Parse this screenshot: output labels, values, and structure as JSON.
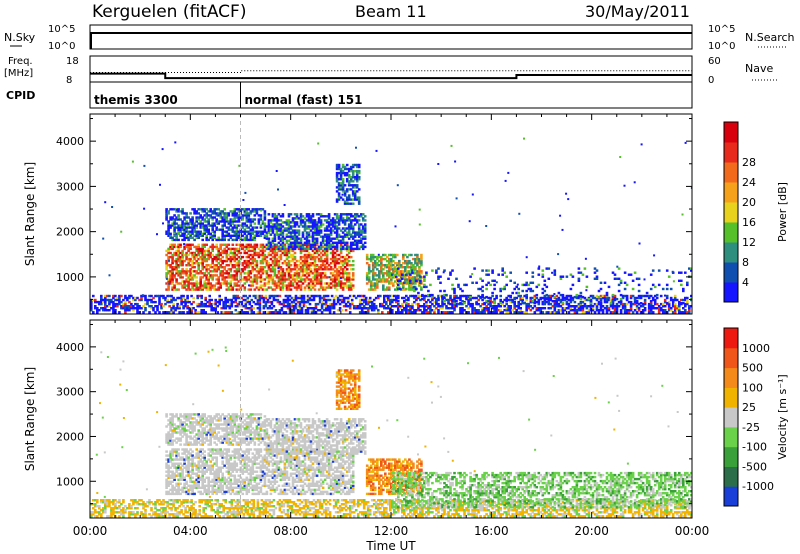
{
  "header": {
    "station": "Kerguelen (fitACF)",
    "beam": "Beam 11",
    "date": "30/May/2011"
  },
  "top_panels": {
    "nsky_label": "N.Sky",
    "nsearch_label": "N.Search",
    "n_ticks_left": [
      "10^5",
      "10^0"
    ],
    "n_ticks_right": [
      "10^5",
      "10^0"
    ],
    "freq_label_line1": "Freq.",
    "freq_label_line2": "[MHz]",
    "freq_ticks": [
      "18",
      "8"
    ],
    "nave_label": "Nave",
    "nave_ticks": [
      "60",
      "0"
    ],
    "cpid_label": "CPID",
    "cpid_modes": [
      {
        "name": "themis 3300",
        "start_hour": 0
      },
      {
        "name": "normal (fast) 151",
        "start_hour": 6
      }
    ],
    "freq_mhz": [
      {
        "start": 0,
        "end": 3.0,
        "value": 11.2
      },
      {
        "start": 3.0,
        "end": 17.0,
        "value": 9.5
      },
      {
        "start": 17.0,
        "end": 24.0,
        "value": 10.7
      }
    ],
    "nave": [
      {
        "start": 0,
        "end": 6.0,
        "value": 22
      },
      {
        "start": 6.0,
        "end": 24.0,
        "value": 26
      }
    ]
  },
  "chart_data": [
    {
      "type": "heatmap",
      "name": "power",
      "ylabel": "Slant Range [km]",
      "xlabel": "",
      "xlim": [
        0,
        24
      ],
      "ylim": [
        180,
        4600
      ],
      "y_ticks": [
        "1000",
        "2000",
        "3000",
        "4000"
      ],
      "x_ticks": [
        "00:00",
        "04:00",
        "08:00",
        "12:00",
        "16:00",
        "20:00",
        "00:00"
      ],
      "colorbar_label": "Power [dB]",
      "colorbar_ticks": [
        "4",
        "8",
        "12",
        "16",
        "20",
        "24",
        "28"
      ],
      "colorbar_colors": [
        "#1515ff",
        "#0f4fb0",
        "#2f8f7f",
        "#55c02a",
        "#e8d21e",
        "#f5a21a",
        "#f26a1c",
        "#e82a1c",
        "#d8000d"
      ],
      "regions": [
        {
          "t": [
            3.0,
            10.5
          ],
          "r": [
            700,
            1700
          ],
          "level": "high"
        },
        {
          "t": [
            3.0,
            7.0
          ],
          "r": [
            1800,
            2500
          ],
          "level": "low"
        },
        {
          "t": [
            7.0,
            11.0
          ],
          "r": [
            1600,
            2400
          ],
          "level": "low"
        },
        {
          "t": [
            9.8,
            10.7
          ],
          "r": [
            2600,
            3500
          ],
          "level": "low"
        },
        {
          "t": [
            11.0,
            13.2
          ],
          "r": [
            700,
            1500
          ],
          "level": "mid"
        },
        {
          "t": [
            0.0,
            24.0
          ],
          "r": [
            200,
            600
          ],
          "level": "ground"
        },
        {
          "t": [
            12.0,
            24.0
          ],
          "r": [
            400,
            1200
          ],
          "level": "sparse"
        }
      ]
    },
    {
      "type": "heatmap",
      "name": "velocity",
      "ylabel": "Slant Range [km]",
      "xlabel": "Time UT",
      "xlim": [
        0,
        24
      ],
      "ylim": [
        180,
        4600
      ],
      "y_ticks": [
        "1000",
        "2000",
        "3000",
        "4000"
      ],
      "x_ticks": [
        "00:00",
        "04:00",
        "08:00",
        "12:00",
        "16:00",
        "20:00",
        "00:00"
      ],
      "colorbar_label": "Velocity [m s⁻¹]",
      "colorbar_ticks": [
        "1000",
        "500",
        "100",
        "25",
        "-25",
        "-100",
        "-500",
        "-1000"
      ],
      "colorbar_colors": [
        "#1a3fd8",
        "#2c6e4a",
        "#3aa03a",
        "#6ad24a",
        "#c8c8c8",
        "#f0b400",
        "#f38a1a",
        "#f0561a",
        "#ee1a12"
      ],
      "regions": [
        {
          "t": [
            3.0,
            10.5
          ],
          "r": [
            700,
            1700
          ],
          "level": "grey"
        },
        {
          "t": [
            3.0,
            7.0
          ],
          "r": [
            1800,
            2500
          ],
          "level": "grey"
        },
        {
          "t": [
            7.0,
            11.0
          ],
          "r": [
            1600,
            2400
          ],
          "level": "grey"
        },
        {
          "t": [
            9.8,
            10.7
          ],
          "r": [
            2600,
            3500
          ],
          "level": "orange"
        },
        {
          "t": [
            11.0,
            13.2
          ],
          "r": [
            700,
            1500
          ],
          "level": "orange"
        },
        {
          "t": [
            0.0,
            24.0
          ],
          "r": [
            200,
            600
          ],
          "level": "yellow"
        },
        {
          "t": [
            12.0,
            24.0
          ],
          "r": [
            400,
            1200
          ],
          "level": "green"
        }
      ]
    }
  ]
}
